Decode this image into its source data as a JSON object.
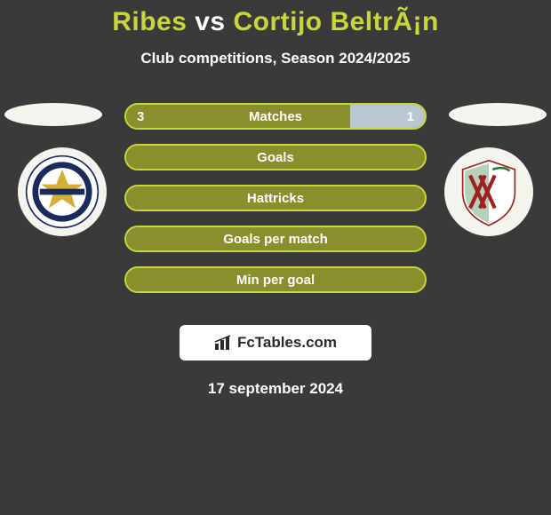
{
  "title": {
    "player1": "Ribes",
    "vs": "vs",
    "player2": "Cortijo BeltrÃ¡n",
    "player1_color": "#c9d63a",
    "vs_color": "#ffffff",
    "player2_color": "#c9d63a"
  },
  "subtitle": "Club competitions, Season 2024/2025",
  "colors": {
    "background": "#3a3a3a",
    "bar_track": "#8a8f2e",
    "bar_border": "#c9d63a",
    "player1_fill": "#8a8f2e",
    "player2_fill": "#b8c7d0",
    "text": "#ffffff"
  },
  "bars": [
    {
      "label": "Matches",
      "left_value": "3",
      "right_value": "1",
      "left_pct": 75,
      "right_pct": 25,
      "show_values": true
    },
    {
      "label": "Goals",
      "left_value": "",
      "right_value": "",
      "left_pct": 100,
      "right_pct": 0,
      "show_values": false
    },
    {
      "label": "Hattricks",
      "left_value": "",
      "right_value": "",
      "left_pct": 100,
      "right_pct": 0,
      "show_values": false
    },
    {
      "label": "Goals per match",
      "left_value": "",
      "right_value": "",
      "left_pct": 100,
      "right_pct": 0,
      "show_values": false
    },
    {
      "label": "Min per goal",
      "left_value": "",
      "right_value": "",
      "left_pct": 100,
      "right_pct": 0,
      "show_values": false
    }
  ],
  "footer": {
    "brand": "FcTables.com",
    "date": "17 september 2024"
  }
}
